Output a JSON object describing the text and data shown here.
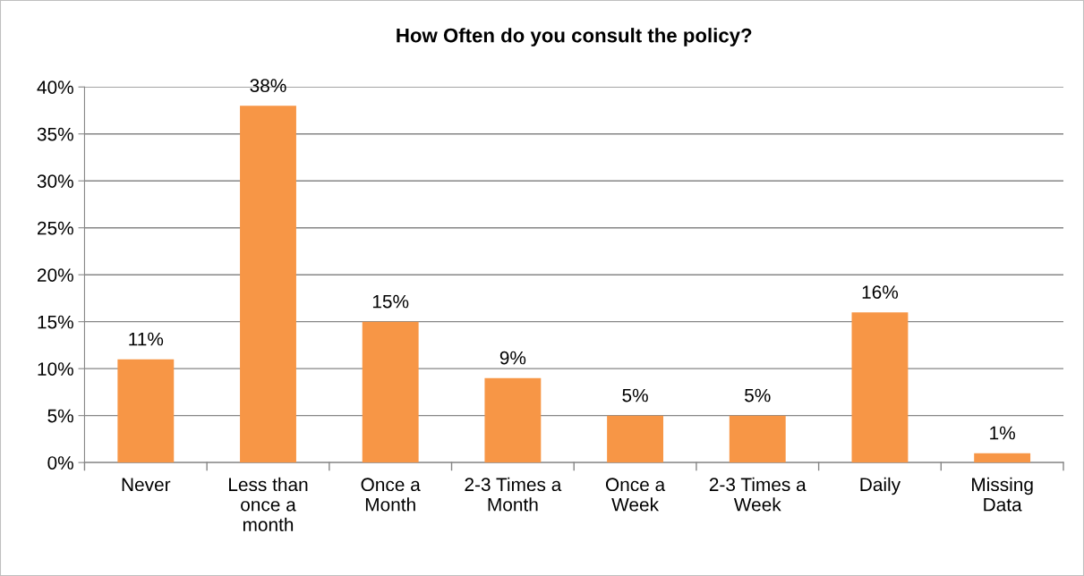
{
  "chart_data": {
    "type": "bar",
    "title": "How Often do you consult the policy?",
    "categories": [
      "Never",
      "Less than\nonce a\nmonth",
      "Once a\nMonth",
      "2-3 Times a\nMonth",
      "Once a\nWeek",
      "2-3 Times a\nWeek",
      "Daily",
      "Missing\nData"
    ],
    "values": [
      11,
      38,
      15,
      9,
      5,
      5,
      16,
      1
    ],
    "value_labels": [
      "11%",
      "38%",
      "15%",
      "9%",
      "5%",
      "5%",
      "16%",
      "1%"
    ],
    "color": "#f79646",
    "ylim": [
      0,
      40
    ],
    "yticks": [
      {
        "value": 0,
        "label": "0%"
      },
      {
        "value": 5,
        "label": "5%"
      },
      {
        "value": 10,
        "label": "10%"
      },
      {
        "value": 15,
        "label": "15%"
      },
      {
        "value": 20,
        "label": "20%"
      },
      {
        "value": 25,
        "label": "25%"
      },
      {
        "value": 30,
        "label": "30%"
      },
      {
        "value": 35,
        "label": "35%"
      },
      {
        "value": 40,
        "label": "40%"
      }
    ],
    "grid": "y",
    "legend": false
  }
}
